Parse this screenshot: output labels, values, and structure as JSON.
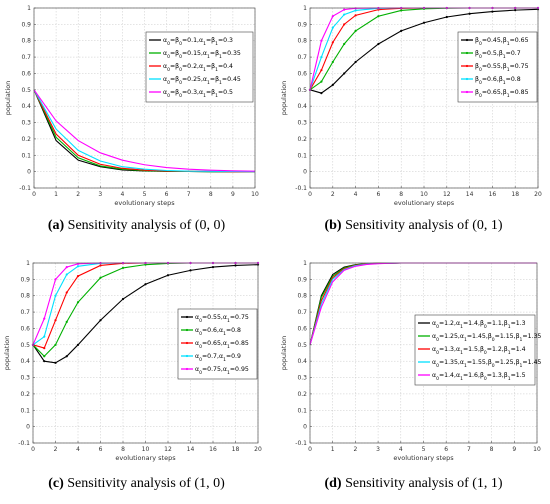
{
  "figure": {
    "captions": [
      {
        "letter": "(a)",
        "text": " Sensitivity analysis of (0, 0)"
      },
      {
        "letter": "(b)",
        "text": " Sensitivity analysis of (0, 1)"
      },
      {
        "letter": "(c)",
        "text": " Sensitivity analysis of (1, 0)"
      },
      {
        "letter": "(d)",
        "text": " Sensitivity analysis of (1, 1)"
      }
    ]
  },
  "chart_data": [
    {
      "type": "line",
      "xlabel": "evolutionary steps",
      "ylabel": "population",
      "xlim": [
        0,
        10
      ],
      "ylim": [
        -0.1,
        1
      ],
      "xticks": [
        0,
        1,
        2,
        3,
        4,
        5,
        6,
        7,
        8,
        9,
        10
      ],
      "yticks": [
        -0.1,
        0,
        0.1,
        0.2,
        0.3,
        0.4,
        0.5,
        0.6,
        0.7,
        0.8,
        0.9,
        1
      ],
      "grid": true,
      "legend": "top-right",
      "series": [
        {
          "name": "α0=β0=0.1,α1=β1=0.3",
          "color": "#000000",
          "x": [
            0,
            1,
            2,
            3,
            4,
            5,
            6,
            7,
            8,
            9,
            10
          ],
          "y": [
            0.5,
            0.19,
            0.07,
            0.03,
            0.01,
            0.004,
            0.002,
            0.001,
            0,
            0,
            0
          ]
        },
        {
          "name": "α0=β0=0.15,α1=β1=0.35",
          "color": "#00b000",
          "x": [
            0,
            1,
            2,
            3,
            4,
            5,
            6,
            7,
            8,
            9,
            10
          ],
          "y": [
            0.5,
            0.21,
            0.085,
            0.035,
            0.015,
            0.006,
            0.003,
            0.001,
            0,
            0,
            0
          ]
        },
        {
          "name": "α0=β0=0.2,α1=β1=0.4",
          "color": "#ff0000",
          "x": [
            0,
            1,
            2,
            3,
            4,
            5,
            6,
            7,
            8,
            9,
            10
          ],
          "y": [
            0.5,
            0.23,
            0.1,
            0.045,
            0.02,
            0.009,
            0.004,
            0.002,
            0.001,
            0,
            0
          ]
        },
        {
          "name": "α0=β0=0.25,α1=β1=0.45",
          "color": "#00e0ff",
          "x": [
            0,
            1,
            2,
            3,
            4,
            5,
            6,
            7,
            8,
            9,
            10
          ],
          "y": [
            0.5,
            0.26,
            0.13,
            0.065,
            0.03,
            0.015,
            0.007,
            0.003,
            0.002,
            0.001,
            0
          ]
        },
        {
          "name": "α0=β0=0.3,α1=β1=0.5",
          "color": "#ff00ff",
          "x": [
            0,
            1,
            2,
            3,
            4,
            5,
            6,
            7,
            8,
            9,
            10
          ],
          "y": [
            0.5,
            0.31,
            0.19,
            0.115,
            0.07,
            0.042,
            0.025,
            0.015,
            0.009,
            0.005,
            0.003
          ]
        }
      ]
    },
    {
      "type": "line",
      "xlabel": "evolutionary steps",
      "ylabel": "population",
      "xlim": [
        0,
        20
      ],
      "ylim": [
        -0.1,
        1
      ],
      "xticks": [
        0,
        2,
        4,
        6,
        8,
        10,
        12,
        14,
        16,
        18,
        20
      ],
      "yticks": [
        -0.1,
        0,
        0.1,
        0.2,
        0.3,
        0.4,
        0.5,
        0.6,
        0.7,
        0.8,
        0.9,
        1
      ],
      "grid": true,
      "legend": "top-right",
      "series": [
        {
          "name": "β0=0.45,β1=0.65",
          "color": "#000000",
          "x": [
            0,
            1,
            2,
            3,
            4,
            6,
            8,
            10,
            12,
            14,
            16,
            18,
            20
          ],
          "y": [
            0.5,
            0.48,
            0.53,
            0.6,
            0.67,
            0.78,
            0.86,
            0.91,
            0.945,
            0.965,
            0.978,
            0.987,
            0.992
          ]
        },
        {
          "name": "β0=0.5,β1=0.7",
          "color": "#00b000",
          "x": [
            0,
            1,
            2,
            3,
            4,
            6,
            8,
            10,
            12,
            14,
            16,
            18,
            20
          ],
          "y": [
            0.5,
            0.55,
            0.67,
            0.78,
            0.86,
            0.95,
            0.985,
            0.995,
            0.999,
            1,
            1,
            1,
            1
          ]
        },
        {
          "name": "β0=0.55,β1=0.75",
          "color": "#ff0000",
          "x": [
            0,
            1,
            2,
            3,
            4,
            6,
            8,
            10,
            12,
            14,
            16,
            18,
            20
          ],
          "y": [
            0.5,
            0.62,
            0.79,
            0.9,
            0.955,
            0.99,
            0.998,
            1,
            1,
            1,
            1,
            1,
            1
          ]
        },
        {
          "name": "β0=0.6,β1=0.8",
          "color": "#00e0ff",
          "x": [
            0,
            1,
            2,
            3,
            4,
            6,
            8,
            10,
            12,
            14,
            16,
            18,
            20
          ],
          "y": [
            0.5,
            0.7,
            0.88,
            0.96,
            0.985,
            0.998,
            1,
            1,
            1,
            1,
            1,
            1,
            1
          ]
        },
        {
          "name": "β0=0.65,β1=0.85",
          "color": "#ff00ff",
          "x": [
            0,
            1,
            2,
            3,
            4,
            6,
            8,
            10,
            12,
            14,
            16,
            18,
            20
          ],
          "y": [
            0.5,
            0.8,
            0.95,
            0.99,
            0.998,
            1,
            1,
            1,
            1,
            1,
            1,
            1,
            1
          ]
        }
      ]
    },
    {
      "type": "line",
      "xlabel": "evolutionary steps",
      "ylabel": "population",
      "xlim": [
        0,
        20
      ],
      "ylim": [
        -0.1,
        1
      ],
      "xticks": [
        0,
        2,
        4,
        6,
        8,
        10,
        12,
        14,
        16,
        18,
        20
      ],
      "yticks": [
        -0.1,
        0,
        0.1,
        0.2,
        0.3,
        0.4,
        0.5,
        0.6,
        0.7,
        0.8,
        0.9,
        1
      ],
      "grid": true,
      "legend": "right",
      "series": [
        {
          "name": "α0=0.55,α1=0.75",
          "color": "#000000",
          "x": [
            0,
            1,
            2,
            3,
            4,
            6,
            8,
            10,
            12,
            14,
            16,
            18,
            20
          ],
          "y": [
            0.5,
            0.4,
            0.39,
            0.43,
            0.5,
            0.65,
            0.78,
            0.87,
            0.925,
            0.955,
            0.975,
            0.985,
            0.99
          ]
        },
        {
          "name": "α0=0.6,α1=0.8",
          "color": "#00b000",
          "x": [
            0,
            1,
            2,
            3,
            4,
            6,
            8,
            10,
            12,
            14,
            16,
            18,
            20
          ],
          "y": [
            0.5,
            0.43,
            0.5,
            0.64,
            0.76,
            0.91,
            0.97,
            0.99,
            0.997,
            1,
            1,
            1,
            1
          ]
        },
        {
          "name": "α0=0.65,α1=0.85",
          "color": "#ff0000",
          "x": [
            0,
            1,
            2,
            3,
            4,
            6,
            8,
            10,
            12,
            14,
            16,
            18,
            20
          ],
          "y": [
            0.5,
            0.48,
            0.65,
            0.82,
            0.92,
            0.985,
            0.998,
            1,
            1,
            1,
            1,
            1,
            1
          ]
        },
        {
          "name": "α0=0.7,α1=0.9",
          "color": "#00e0ff",
          "x": [
            0,
            1,
            2,
            3,
            4,
            6,
            8,
            10,
            12,
            14,
            16,
            18,
            20
          ],
          "y": [
            0.5,
            0.55,
            0.8,
            0.93,
            0.98,
            0.998,
            1,
            1,
            1,
            1,
            1,
            1,
            1
          ]
        },
        {
          "name": "α0=0.75,α1=0.95",
          "color": "#ff00ff",
          "x": [
            0,
            1,
            2,
            3,
            4,
            6,
            8,
            10,
            12,
            14,
            16,
            18,
            20
          ],
          "y": [
            0.5,
            0.66,
            0.9,
            0.975,
            0.995,
            1,
            1,
            1,
            1,
            1,
            1,
            1,
            1
          ]
        }
      ]
    },
    {
      "type": "line",
      "xlabel": "evolutionary steps",
      "ylabel": "population",
      "xlim": [
        0,
        10
      ],
      "ylim": [
        -0.1,
        1
      ],
      "xticks": [
        0,
        1,
        2,
        3,
        4,
        5,
        6,
        7,
        8,
        9,
        10
      ],
      "yticks": [
        -0.1,
        0,
        0.1,
        0.2,
        0.3,
        0.4,
        0.5,
        0.6,
        0.7,
        0.8,
        0.9,
        1
      ],
      "grid": true,
      "legend": "right",
      "series": [
        {
          "name": "α0=1.2,α1=1.4,β0=1.1,β1=1.3",
          "color": "#000000",
          "x": [
            0,
            0.5,
            1,
            1.5,
            2,
            2.5,
            3,
            4,
            5,
            6,
            7,
            8,
            9,
            10
          ],
          "y": [
            0.5,
            0.8,
            0.93,
            0.975,
            0.99,
            0.996,
            0.999,
            1,
            1,
            1,
            1,
            1,
            1,
            1
          ]
        },
        {
          "name": "α0=1.25,α1=1.45,β0=1.15,β1=1.35",
          "color": "#00b000",
          "x": [
            0,
            0.5,
            1,
            1.5,
            2,
            2.5,
            3,
            4,
            5,
            6,
            7,
            8,
            9,
            10
          ],
          "y": [
            0.5,
            0.79,
            0.92,
            0.97,
            0.988,
            0.995,
            0.998,
            1,
            1,
            1,
            1,
            1,
            1,
            1
          ]
        },
        {
          "name": "α0=1.3,α1=1.5,β0=1.2,β1=1.4",
          "color": "#ff0000",
          "x": [
            0,
            0.5,
            1,
            1.5,
            2,
            2.5,
            3,
            4,
            5,
            6,
            7,
            8,
            9,
            10
          ],
          "y": [
            0.5,
            0.77,
            0.91,
            0.965,
            0.986,
            0.994,
            0.998,
            1,
            1,
            1,
            1,
            1,
            1,
            1
          ]
        },
        {
          "name": "α0=1.35,α1=1.55,β0=1.25,β1=1.45",
          "color": "#00e0ff",
          "x": [
            0,
            0.5,
            1,
            1.5,
            2,
            2.5,
            3,
            4,
            5,
            6,
            7,
            8,
            9,
            10
          ],
          "y": [
            0.5,
            0.75,
            0.9,
            0.96,
            0.984,
            0.993,
            0.997,
            1,
            1,
            1,
            1,
            1,
            1,
            1
          ]
        },
        {
          "name": "α0=1.4,α1=1.6,β0=1.3,β1=1.5",
          "color": "#ff00ff",
          "x": [
            0,
            0.5,
            1,
            1.5,
            2,
            2.5,
            3,
            4,
            5,
            6,
            7,
            8,
            9,
            10
          ],
          "y": [
            0.5,
            0.73,
            0.885,
            0.955,
            0.98,
            0.991,
            0.996,
            1,
            1,
            1,
            1,
            1,
            1,
            1
          ]
        }
      ]
    }
  ]
}
